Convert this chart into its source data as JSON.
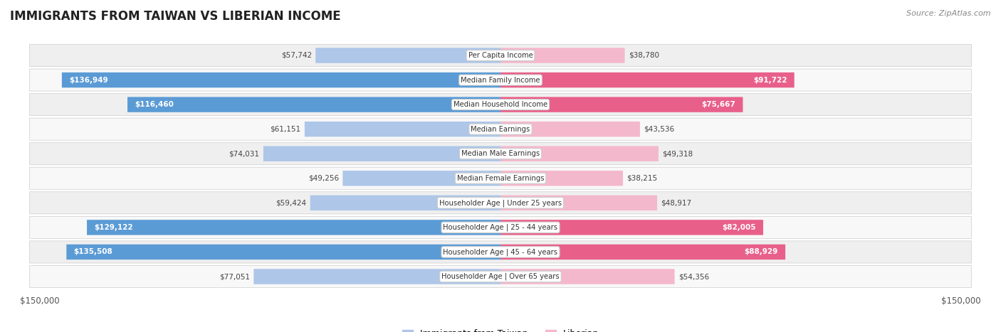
{
  "title": "IMMIGRANTS FROM TAIWAN VS LIBERIAN INCOME",
  "source": "Source: ZipAtlas.com",
  "categories": [
    "Per Capita Income",
    "Median Family Income",
    "Median Household Income",
    "Median Earnings",
    "Median Male Earnings",
    "Median Female Earnings",
    "Householder Age | Under 25 years",
    "Householder Age | 25 - 44 years",
    "Householder Age | 45 - 64 years",
    "Householder Age | Over 65 years"
  ],
  "taiwan_values": [
    57742,
    136949,
    116460,
    61151,
    74031,
    49256,
    59424,
    129122,
    135508,
    77051
  ],
  "liberian_values": [
    38780,
    91722,
    75667,
    43536,
    49318,
    38215,
    48917,
    82005,
    88929,
    54356
  ],
  "taiwan_color_light": "#aec6e8",
  "taiwan_color_dark": "#5b9bd5",
  "liberian_color_light": "#f4b8cc",
  "liberian_color_dark": "#e8608a",
  "max_value": 150000,
  "taiwan_label": "Immigrants from Taiwan",
  "liberian_label": "Liberian",
  "background_color": "#ffffff",
  "row_bg_odd": "#efefef",
  "row_bg_even": "#f8f8f8",
  "border_color": "#dddddd"
}
